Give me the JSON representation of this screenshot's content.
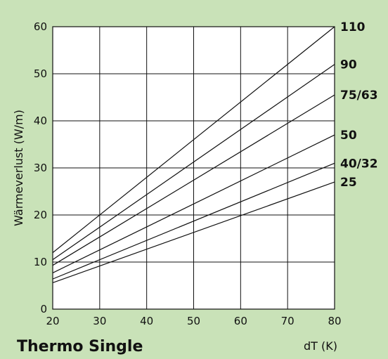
{
  "chart_data": {
    "type": "line",
    "title": "Thermo Single",
    "xlabel": "dT (K)",
    "ylabel": "Wärmeverlust (W/m)",
    "xlim": [
      20,
      80
    ],
    "ylim": [
      0,
      60
    ],
    "x_ticks": [
      20,
      30,
      40,
      50,
      60,
      70,
      80
    ],
    "y_ticks": [
      0,
      10,
      20,
      30,
      40,
      50,
      60
    ],
    "grid": true,
    "legend": "labels at right end of each line",
    "colors": {
      "background": "#c9e2b8",
      "plot_area": "#ffffff",
      "line": "#111111"
    },
    "series": [
      {
        "name": "110",
        "values": [
          [
            20,
            12.0
          ],
          [
            80,
            60.0
          ]
        ]
      },
      {
        "name": "90",
        "values": [
          [
            20,
            10.5
          ],
          [
            80,
            52.0
          ]
        ]
      },
      {
        "name": "75/63",
        "values": [
          [
            20,
            9.3
          ],
          [
            80,
            45.5
          ]
        ]
      },
      {
        "name": "50",
        "values": [
          [
            20,
            7.7
          ],
          [
            80,
            37.0
          ]
        ]
      },
      {
        "name": "40/32",
        "values": [
          [
            20,
            6.4
          ],
          [
            80,
            31.0
          ]
        ]
      },
      {
        "name": "25",
        "values": [
          [
            20,
            5.6
          ],
          [
            80,
            27.0
          ]
        ]
      }
    ]
  }
}
